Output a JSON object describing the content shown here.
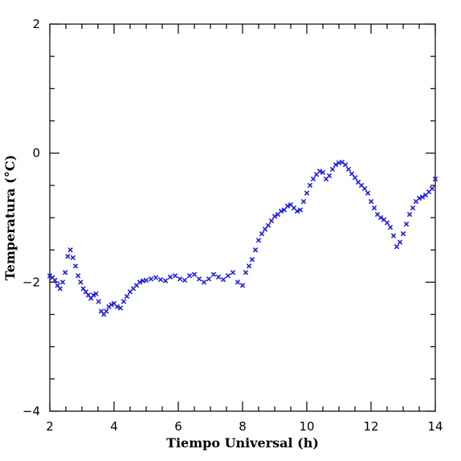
{
  "chart_data": {
    "type": "scatter",
    "xlabel": "Tiempo Universal (h)",
    "ylabel": "Temperatura (°C)",
    "xlim": [
      2,
      14
    ],
    "ylim": [
      -4,
      2
    ],
    "x_ticks": [
      "2",
      "4",
      "6",
      "8",
      "10",
      "12",
      "14"
    ],
    "y_ticks": [
      "-4",
      "-2",
      "0",
      "2"
    ],
    "marker": "x",
    "color": "#1f1fe0",
    "grid": false,
    "series": [
      {
        "x": [
          2.0,
          2.08,
          2.16,
          2.24,
          2.32,
          2.4,
          2.48,
          2.56,
          2.64,
          2.72,
          2.8,
          2.88,
          2.96,
          3.04,
          3.12,
          3.2,
          3.28,
          3.36,
          3.44,
          3.52,
          3.6,
          3.68,
          3.76,
          3.84,
          3.92,
          4.0,
          4.1,
          4.2,
          4.3,
          4.4,
          4.5,
          4.6,
          4.7,
          4.8,
          4.9,
          5.0,
          5.15,
          5.3,
          5.45,
          5.6,
          5.75,
          5.9,
          6.05,
          6.2,
          6.35,
          6.5,
          6.65,
          6.8,
          6.95,
          7.1,
          7.25,
          7.4,
          7.55,
          7.7,
          7.85,
          8.0,
          8.1,
          8.2,
          8.3,
          8.4,
          8.5,
          8.6,
          8.7,
          8.8,
          8.9,
          9.0,
          9.1,
          9.2,
          9.3,
          9.4,
          9.5,
          9.6,
          9.7,
          9.8,
          9.9,
          10.0,
          10.1,
          10.2,
          10.3,
          10.4,
          10.5,
          10.6,
          10.7,
          10.8,
          10.9,
          11.0,
          11.1,
          11.2,
          11.3,
          11.4,
          11.5,
          11.6,
          11.7,
          11.8,
          11.9,
          12.0,
          12.1,
          12.2,
          12.3,
          12.4,
          12.5,
          12.6,
          12.7,
          12.8,
          12.9,
          13.0,
          13.1,
          13.2,
          13.3,
          13.4,
          13.5,
          13.6,
          13.7,
          13.8,
          13.9,
          14.0
        ],
        "y": [
          -1.9,
          -1.93,
          -1.97,
          -2.05,
          -2.1,
          -2.0,
          -1.85,
          -1.6,
          -1.5,
          -1.62,
          -1.75,
          -1.9,
          -2.0,
          -2.1,
          -2.15,
          -2.2,
          -2.25,
          -2.2,
          -2.18,
          -2.3,
          -2.45,
          -2.5,
          -2.45,
          -2.38,
          -2.35,
          -2.33,
          -2.38,
          -2.4,
          -2.3,
          -2.22,
          -2.15,
          -2.1,
          -2.05,
          -2.0,
          -1.98,
          -1.97,
          -1.95,
          -1.93,
          -1.96,
          -1.98,
          -1.92,
          -1.9,
          -1.95,
          -1.97,
          -1.9,
          -1.88,
          -1.95,
          -2.0,
          -1.95,
          -1.88,
          -1.92,
          -1.96,
          -1.9,
          -1.85,
          -2.0,
          -2.05,
          -1.85,
          -1.75,
          -1.65,
          -1.5,
          -1.35,
          -1.25,
          -1.18,
          -1.12,
          -1.05,
          -0.98,
          -0.95,
          -0.9,
          -0.88,
          -0.82,
          -0.8,
          -0.85,
          -0.9,
          -0.88,
          -0.75,
          -0.62,
          -0.5,
          -0.4,
          -0.33,
          -0.28,
          -0.3,
          -0.4,
          -0.35,
          -0.25,
          -0.18,
          -0.15,
          -0.14,
          -0.18,
          -0.25,
          -0.32,
          -0.38,
          -0.45,
          -0.5,
          -0.55,
          -0.62,
          -0.75,
          -0.85,
          -0.95,
          -1.0,
          -1.03,
          -1.08,
          -1.15,
          -1.28,
          -1.45,
          -1.38,
          -1.25,
          -1.1,
          -0.95,
          -0.85,
          -0.75,
          -0.7,
          -0.68,
          -0.65,
          -0.6,
          -0.55,
          -0.4
        ]
      }
    ]
  }
}
